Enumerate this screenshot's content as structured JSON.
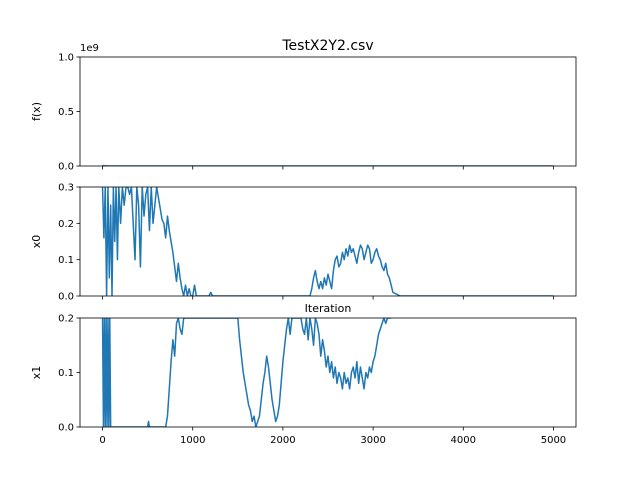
{
  "chart_data": {
    "title": "TestX2Y2.csv",
    "type": "line",
    "xlabel": "Iteration",
    "xlim": [
      -250,
      5250
    ],
    "xticks": [
      0,
      1000,
      2000,
      3000,
      4000,
      5000
    ],
    "xtick_labels": [
      "0",
      "1000",
      "2000",
      "3000",
      "4000",
      "5000"
    ],
    "grid": false,
    "color": "#1f77b4",
    "panels": [
      {
        "ylabel": "f(x)",
        "ylim": [
          0,
          1.0
        ],
        "yticks": [
          0,
          0.5,
          1.0
        ],
        "ytick_labels": [
          "0.0",
          "0.5",
          "1.0"
        ],
        "offset_text": "1e9",
        "series": [
          {
            "x": [
              0,
              20,
              40,
              60,
              5000
            ],
            "y": [
              0.006,
              0.002,
              0.001,
              0.0002,
              0.0001
            ]
          }
        ]
      },
      {
        "ylabel": "x0",
        "ylim": [
          0,
          0.3
        ],
        "yticks": [
          0,
          0.1,
          0.2,
          0.3
        ],
        "ytick_labels": [
          "0.0",
          "0.1",
          "0.2",
          "0.3"
        ],
        "series": [
          {
            "x": [
              0,
              15,
              30,
              45,
              60,
              75,
              90,
              105,
              120,
              135,
              150,
              165,
              180,
              200,
              220,
              240,
              260,
              280,
              300,
              320,
              340,
              360,
              380,
              400,
              420,
              440,
              460,
              480,
              500,
              520,
              540,
              560,
              580,
              600,
              620,
              640,
              660,
              680,
              700,
              720,
              740,
              760,
              780,
              800,
              820,
              840,
              860,
              880,
              900,
              920,
              940,
              960,
              980,
              1000,
              1020,
              1040,
              1060,
              1080,
              1100,
              1120,
              1140,
              1160,
              1180,
              1200,
              1220,
              1240,
              1260,
              1280,
              1300,
              1400,
              1500,
              1600,
              1700,
              1800,
              1900,
              2000,
              2100,
              2200,
              2300,
              2320,
              2340,
              2360,
              2380,
              2400,
              2420,
              2440,
              2460,
              2480,
              2500,
              2520,
              2540,
              2560,
              2580,
              2600,
              2620,
              2640,
              2660,
              2680,
              2700,
              2720,
              2740,
              2760,
              2780,
              2800,
              2820,
              2840,
              2860,
              2880,
              2900,
              2920,
              2940,
              2960,
              2980,
              3000,
              3020,
              3040,
              3060,
              3080,
              3100,
              3120,
              3140,
              3160,
              3180,
              3200,
              3220,
              3300,
              3500,
              4000,
              4500,
              5000
            ],
            "y": [
              0.3,
              0.16,
              0.3,
              0.0,
              0.3,
              0.05,
              0.25,
              0.0,
              0.3,
              0.15,
              0.3,
              0.1,
              0.3,
              0.2,
              0.3,
              0.25,
              0.3,
              0.3,
              0.28,
              0.3,
              0.2,
              0.1,
              0.3,
              0.25,
              0.08,
              0.3,
              0.22,
              0.28,
              0.3,
              0.18,
              0.3,
              0.2,
              0.25,
              0.3,
              0.27,
              0.24,
              0.21,
              0.2,
              0.16,
              0.22,
              0.18,
              0.15,
              0.12,
              0.08,
              0.04,
              0.09,
              0.05,
              0.02,
              0.0,
              0.03,
              0.0,
              0.02,
              0.0,
              0.0,
              0.03,
              0.0,
              0.0,
              0.0,
              0.0,
              0.0,
              0.0,
              0.0,
              0.0,
              0.01,
              0.0,
              0.0,
              0.0,
              0.0,
              0.0,
              0.0,
              0.0,
              0.0,
              0.0,
              0.0,
              0.0,
              0.0,
              0.0,
              0.0,
              0.0,
              0.02,
              0.05,
              0.07,
              0.04,
              0.02,
              0.04,
              0.02,
              0.05,
              0.03,
              0.06,
              0.04,
              0.02,
              0.07,
              0.1,
              0.11,
              0.08,
              0.09,
              0.12,
              0.1,
              0.13,
              0.11,
              0.14,
              0.12,
              0.13,
              0.11,
              0.09,
              0.12,
              0.14,
              0.13,
              0.1,
              0.12,
              0.14,
              0.13,
              0.09,
              0.1,
              0.12,
              0.13,
              0.11,
              0.1,
              0.08,
              0.07,
              0.09,
              0.06,
              0.05,
              0.03,
              0.01,
              0.0,
              0.0,
              0.0,
              0.0,
              0.0
            ]
          }
        ]
      },
      {
        "ylabel": "x1",
        "ylim": [
          0,
          0.2
        ],
        "yticks": [
          0,
          0.1,
          0.2
        ],
        "ytick_labels": [
          "0.0",
          "0.1",
          "0.2"
        ],
        "series": [
          {
            "x": [
              0,
              10,
              20,
              30,
              40,
              50,
              60,
              70,
              80,
              90,
              500,
              510,
              520,
              700,
              720,
              740,
              760,
              780,
              800,
              820,
              840,
              860,
              880,
              900,
              1500,
              1520,
              1540,
              1560,
              1580,
              1600,
              1620,
              1640,
              1660,
              1680,
              1700,
              1720,
              1740,
              1760,
              1780,
              1800,
              1820,
              1840,
              1860,
              1880,
              1900,
              1920,
              1940,
              1960,
              1980,
              2000,
              2020,
              2040,
              2060,
              2080,
              2100,
              2200,
              2220,
              2240,
              2260,
              2280,
              2300,
              2320,
              2340,
              2360,
              2380,
              2400,
              2420,
              2440,
              2460,
              2480,
              2500,
              2520,
              2540,
              2560,
              2580,
              2600,
              2620,
              2640,
              2660,
              2680,
              2700,
              2720,
              2740,
              2760,
              2780,
              2800,
              2820,
              2840,
              2860,
              2880,
              2900,
              2920,
              2940,
              2960,
              2980,
              3000,
              3020,
              3040,
              3060,
              3080,
              3100,
              3120,
              3140,
              3160,
              3180,
              3200
            ],
            "y": [
              0.2,
              0.0,
              0.2,
              0.0,
              0.2,
              0.0,
              0.2,
              0.0,
              0.2,
              0.0,
              0.0,
              0.01,
              0.0,
              0.0,
              0.02,
              0.07,
              0.12,
              0.16,
              0.13,
              0.19,
              0.2,
              0.18,
              0.17,
              0.2,
              0.2,
              0.16,
              0.13,
              0.1,
              0.08,
              0.06,
              0.04,
              0.03,
              0.01,
              0.02,
              0.0,
              0.01,
              0.02,
              0.05,
              0.08,
              0.1,
              0.13,
              0.11,
              0.08,
              0.05,
              0.03,
              0.01,
              0.02,
              0.04,
              0.08,
              0.12,
              0.15,
              0.18,
              0.2,
              0.17,
              0.2,
              0.2,
              0.18,
              0.17,
              0.2,
              0.16,
              0.2,
              0.18,
              0.15,
              0.2,
              0.19,
              0.17,
              0.13,
              0.16,
              0.14,
              0.11,
              0.13,
              0.1,
              0.12,
              0.09,
              0.11,
              0.08,
              0.1,
              0.09,
              0.07,
              0.1,
              0.08,
              0.09,
              0.07,
              0.1,
              0.11,
              0.09,
              0.12,
              0.08,
              0.11,
              0.09,
              0.07,
              0.1,
              0.09,
              0.11,
              0.1,
              0.12,
              0.13,
              0.15,
              0.17,
              0.18,
              0.19,
              0.2,
              0.19,
              0.2,
              0.2,
              0.2
            ]
          }
        ]
      }
    ]
  }
}
